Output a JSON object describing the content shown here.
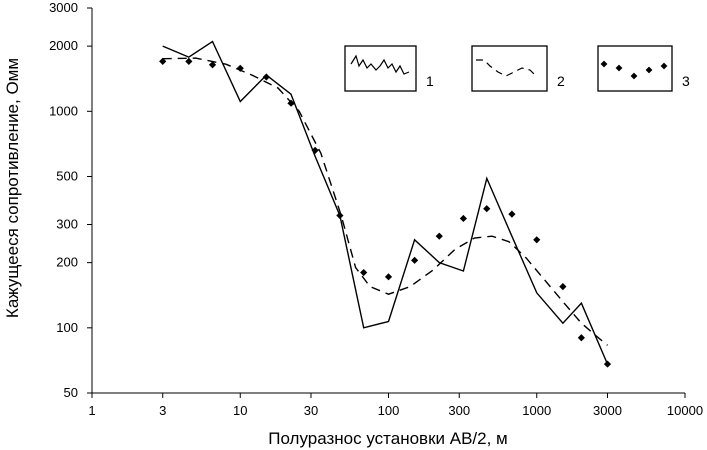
{
  "chart_data": {
    "type": "line",
    "x_scale": "log",
    "y_scale": "log",
    "xlim": [
      1,
      10000
    ],
    "ylim": [
      50,
      3000
    ],
    "xlabel": "Полуразнос установки АВ/2, м",
    "ylabel": "Кажущееся сопротивление, Омм",
    "x_ticks": [
      {
        "value": 1,
        "label": "1"
      },
      {
        "value": 3,
        "label": "3"
      },
      {
        "value": 10,
        "label": "10"
      },
      {
        "value": 30,
        "label": "30"
      },
      {
        "value": 100,
        "label": "100"
      },
      {
        "value": 300,
        "label": "300"
      },
      {
        "value": 1000,
        "label": "1000"
      },
      {
        "value": 3000,
        "label": "3000"
      },
      {
        "value": 10000,
        "label": "10000"
      }
    ],
    "y_ticks": [
      {
        "value": 50,
        "label": "50"
      },
      {
        "value": 100,
        "label": "100"
      },
      {
        "value": 200,
        "label": "200"
      },
      {
        "value": 300,
        "label": "300"
      },
      {
        "value": 500,
        "label": "500"
      },
      {
        "value": 1000,
        "label": "1000"
      },
      {
        "value": 2000,
        "label": "2000"
      },
      {
        "value": 3000,
        "label": "3000"
      }
    ],
    "grid": false,
    "legend_position": "top-right",
    "series": [
      {
        "name": "1",
        "style": "solid",
        "x": [
          3,
          4.5,
          6.5,
          10,
          15,
          22,
          32,
          47,
          68,
          100,
          150,
          220,
          320,
          460,
          680,
          1000,
          1500,
          2000,
          3000
        ],
        "y": [
          2000,
          1780,
          2100,
          1110,
          1470,
          1200,
          620,
          330,
          100,
          107,
          255,
          200,
          183,
          490,
          265,
          145,
          105,
          130,
          68
        ]
      },
      {
        "name": "2",
        "style": "dashed",
        "x": [
          3,
          5,
          8,
          12,
          18,
          25,
          35,
          48,
          60,
          75,
          100,
          140,
          200,
          280,
          380,
          500,
          650,
          850,
          1100,
          1500,
          2000,
          2600,
          3000
        ],
        "y": [
          1750,
          1760,
          1650,
          1470,
          1280,
          1000,
          640,
          330,
          190,
          155,
          143,
          155,
          185,
          230,
          260,
          265,
          250,
          210,
          170,
          132,
          105,
          90,
          83
        ]
      },
      {
        "name": "3",
        "style": "markers",
        "x": [
          3,
          4.5,
          6.5,
          10,
          15,
          22,
          32,
          47,
          68,
          100,
          150,
          220,
          320,
          460,
          680,
          1000,
          1500,
          2000,
          3000
        ],
        "y": [
          1700,
          1700,
          1640,
          1580,
          1440,
          1090,
          660,
          330,
          180,
          172,
          205,
          265,
          320,
          355,
          335,
          255,
          155,
          90,
          68
        ]
      }
    ],
    "colors": {
      "ink": "#000000",
      "background": "#ffffff"
    }
  }
}
